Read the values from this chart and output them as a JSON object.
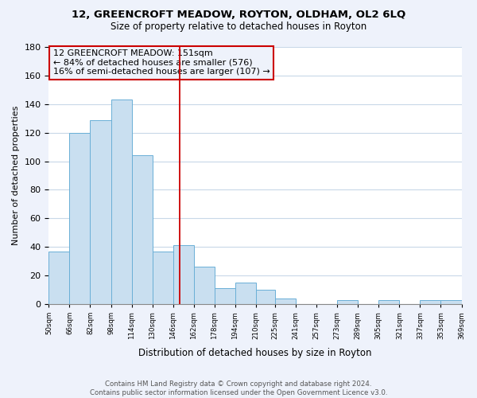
{
  "title": "12, GREENCROFT MEADOW, ROYTON, OLDHAM, OL2 6LQ",
  "subtitle": "Size of property relative to detached houses in Royton",
  "xlabel": "Distribution of detached houses by size in Royton",
  "ylabel": "Number of detached properties",
  "bar_edges": [
    50,
    66,
    82,
    98,
    114,
    130,
    146,
    162,
    178,
    194,
    210,
    225,
    241,
    257,
    273,
    289,
    305,
    321,
    337,
    353,
    369
  ],
  "bar_heights": [
    37,
    120,
    129,
    143,
    104,
    37,
    41,
    26,
    11,
    15,
    10,
    4,
    0,
    0,
    3,
    0,
    3,
    0,
    3,
    3
  ],
  "bar_color": "#c9dff0",
  "bar_edge_color": "#6aafd6",
  "vline_x": 151,
  "vline_color": "#cc0000",
  "annotation_box_edge_color": "#cc0000",
  "annotation_lines": [
    "12 GREENCROFT MEADOW: 151sqm",
    "← 84% of detached houses are smaller (576)",
    "16% of semi-detached houses are larger (107) →"
  ],
  "ylim": [
    0,
    180
  ],
  "yticks": [
    0,
    20,
    40,
    60,
    80,
    100,
    120,
    140,
    160,
    180
  ],
  "tick_labels": [
    "50sqm",
    "66sqm",
    "82sqm",
    "98sqm",
    "114sqm",
    "130sqm",
    "146sqm",
    "162sqm",
    "178sqm",
    "194sqm",
    "210sqm",
    "225sqm",
    "241sqm",
    "257sqm",
    "273sqm",
    "289sqm",
    "305sqm",
    "321sqm",
    "337sqm",
    "353sqm",
    "369sqm"
  ],
  "footer_lines": [
    "Contains HM Land Registry data © Crown copyright and database right 2024.",
    "Contains public sector information licensed under the Open Government Licence v3.0."
  ],
  "background_color": "#eef2fb",
  "plot_bg_color": "#ffffff"
}
